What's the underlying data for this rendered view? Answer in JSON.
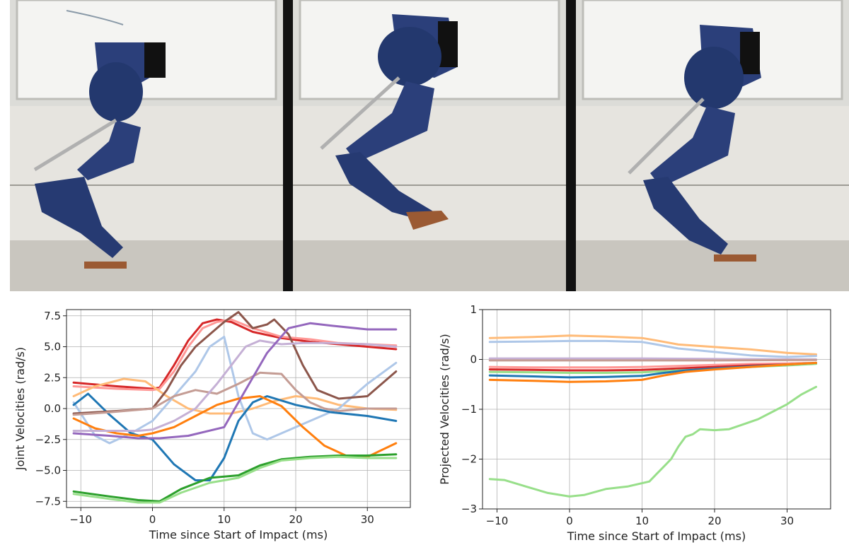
{
  "figure": {
    "photos": [
      {
        "name": "robot-standing",
        "description_icon": "bipedal-robot-icon"
      },
      {
        "name": "robot-airborne",
        "description_icon": "bipedal-robot-icon"
      },
      {
        "name": "robot-landing",
        "description_icon": "bipedal-robot-icon"
      }
    ]
  },
  "chart_data": [
    {
      "type": "line",
      "xlabel": "Time since Start of Impact (ms)",
      "ylabel": "Joint Velocities (rad/s)",
      "xlim": [
        -12,
        36
      ],
      "ylim": [
        -8,
        8
      ],
      "xticks": [
        -10,
        0,
        10,
        20,
        30
      ],
      "yticks": [
        -7.5,
        -5.0,
        -2.5,
        0.0,
        2.5,
        5.0,
        7.5
      ],
      "yticklabels": [
        "−7.5",
        "−5.0",
        "−2.5",
        "0.0",
        "2.5",
        "5.0",
        "7.5"
      ],
      "xticklabels": [
        "−10",
        "0",
        "10",
        "20",
        "30"
      ],
      "grid": true,
      "series": [
        {
          "color": "#d62728",
          "x": [
            -11,
            -5,
            0,
            1,
            3,
            5,
            7,
            9,
            11,
            14,
            18,
            22,
            26,
            30,
            34
          ],
          "y": [
            2.1,
            1.8,
            1.6,
            1.7,
            3.5,
            5.5,
            6.9,
            7.2,
            7.0,
            6.2,
            5.7,
            5.4,
            5.2,
            5.0,
            4.8
          ]
        },
        {
          "color": "#ff9896",
          "x": [
            -11,
            -5,
            0,
            1,
            3,
            5,
            7,
            9,
            11,
            14,
            18,
            22,
            26,
            30,
            34
          ],
          "y": [
            1.8,
            1.6,
            1.5,
            1.6,
            3.0,
            5.0,
            6.5,
            7.0,
            7.2,
            6.5,
            5.8,
            5.6,
            5.3,
            5.2,
            5.1
          ]
        },
        {
          "color": "#ffbb78",
          "x": [
            -11,
            -8,
            -4,
            -1,
            2,
            5,
            8,
            11,
            14,
            17,
            20,
            23,
            26,
            30,
            34
          ],
          "y": [
            1.0,
            1.8,
            2.4,
            2.2,
            1.0,
            0.0,
            -0.4,
            -0.4,
            0.0,
            0.6,
            1.0,
            0.8,
            0.3,
            0.0,
            -0.1
          ]
        },
        {
          "color": "#aec7e8",
          "x": [
            -11,
            -8,
            -6,
            -3,
            0,
            3,
            6,
            8,
            10,
            12,
            14,
            16,
            18,
            22,
            26,
            30,
            34
          ],
          "y": [
            0.5,
            -2.2,
            -2.8,
            -2.0,
            -1.0,
            1.0,
            3.0,
            5.0,
            5.8,
            1.0,
            -2.0,
            -2.5,
            -2.0,
            -1.0,
            0.0,
            2.0,
            3.7
          ]
        },
        {
          "color": "#1f77b4",
          "x": [
            -11,
            -9,
            -6,
            -3,
            0,
            3,
            6,
            8,
            10,
            12,
            14,
            16,
            20,
            25,
            30,
            34
          ],
          "y": [
            0.3,
            1.2,
            -0.5,
            -2.0,
            -2.5,
            -4.5,
            -5.8,
            -5.8,
            -4.0,
            -1.0,
            0.5,
            1.0,
            0.3,
            -0.3,
            -0.6,
            -1.0
          ]
        },
        {
          "color": "#ff7f0e",
          "x": [
            -11,
            -8,
            -5,
            -2,
            0,
            3,
            6,
            9,
            12,
            15,
            18,
            21,
            24,
            27,
            30,
            34
          ],
          "y": [
            -0.8,
            -1.6,
            -2.0,
            -2.2,
            -2.0,
            -1.5,
            -0.6,
            0.3,
            0.8,
            1.0,
            0.2,
            -1.5,
            -3.0,
            -3.8,
            -3.9,
            -2.8
          ]
        },
        {
          "color": "#8c564b",
          "x": [
            -11,
            -5,
            0,
            2,
            4,
            6,
            8,
            10,
            12,
            14,
            16,
            17,
            19,
            21,
            23,
            26,
            30,
            34
          ],
          "y": [
            -0.4,
            -0.2,
            0.0,
            1.5,
            3.5,
            5.0,
            6.0,
            7.0,
            7.8,
            6.5,
            6.8,
            7.2,
            6.0,
            3.5,
            1.5,
            0.8,
            1.0,
            3.0
          ]
        },
        {
          "color": "#c49c94",
          "x": [
            -11,
            -6,
            0,
            3,
            6,
            9,
            12,
            15,
            18,
            20,
            22,
            24,
            26,
            30,
            34
          ],
          "y": [
            -0.5,
            -0.3,
            0.0,
            1.0,
            1.5,
            1.2,
            2.0,
            2.9,
            2.8,
            1.5,
            0.5,
            0.0,
            -0.2,
            0.0,
            0.0
          ]
        },
        {
          "color": "#c5b0d5",
          "x": [
            -11,
            -6,
            -2,
            0,
            3,
            6,
            9,
            11,
            13,
            15,
            18,
            21,
            25,
            30,
            34
          ],
          "y": [
            -1.8,
            -1.8,
            -1.8,
            -1.7,
            -1.0,
            0.0,
            2.0,
            3.5,
            5.0,
            5.5,
            5.2,
            5.3,
            5.3,
            5.2,
            5.0
          ]
        },
        {
          "color": "#9467bd",
          "x": [
            -11,
            -6,
            -2,
            1,
            5,
            10,
            13,
            16,
            19,
            22,
            25,
            30,
            34
          ],
          "y": [
            -2.0,
            -2.2,
            -2.4,
            -2.4,
            -2.2,
            -1.5,
            1.5,
            4.5,
            6.5,
            6.9,
            6.7,
            6.4,
            6.4
          ]
        },
        {
          "color": "#2ca02c",
          "x": [
            -11,
            -6,
            -2,
            1,
            4,
            8,
            12,
            15,
            18,
            22,
            26,
            30,
            34
          ],
          "y": [
            -6.7,
            -7.1,
            -7.4,
            -7.5,
            -6.5,
            -5.6,
            -5.4,
            -4.6,
            -4.1,
            -3.9,
            -3.8,
            -3.8,
            -3.7
          ]
        },
        {
          "color": "#98df8a",
          "x": [
            -11,
            -6,
            -2,
            1,
            4,
            8,
            12,
            15,
            18,
            22,
            26,
            30,
            34
          ],
          "y": [
            -6.9,
            -7.3,
            -7.6,
            -7.6,
            -6.8,
            -6.0,
            -5.6,
            -4.8,
            -4.2,
            -4.0,
            -3.9,
            -4.0,
            -4.0
          ]
        }
      ]
    },
    {
      "type": "line",
      "xlabel": "Time since Start of Impact (ms)",
      "ylabel": "Projected Velocities (rad/s)",
      "xlim": [
        -12,
        36
      ],
      "ylim": [
        -3,
        1
      ],
      "xticks": [
        -10,
        0,
        10,
        20,
        30
      ],
      "yticks": [
        -3,
        -2,
        -1,
        0,
        1
      ],
      "yticklabels": [
        "−3",
        "−2",
        "−1",
        "0",
        "1"
      ],
      "xticklabels": [
        "−10",
        "0",
        "10",
        "20",
        "30"
      ],
      "grid": true,
      "series": [
        {
          "color": "#ffbb78",
          "x": [
            -11,
            -5,
            0,
            5,
            10,
            12,
            15,
            20,
            25,
            30,
            34
          ],
          "y": [
            0.43,
            0.45,
            0.48,
            0.46,
            0.43,
            0.38,
            0.3,
            0.25,
            0.2,
            0.13,
            0.1
          ]
        },
        {
          "color": "#aec7e8",
          "x": [
            -11,
            -5,
            0,
            5,
            10,
            12,
            15,
            20,
            25,
            30,
            34
          ],
          "y": [
            0.35,
            0.36,
            0.37,
            0.37,
            0.35,
            0.3,
            0.22,
            0.15,
            0.08,
            0.05,
            0.07
          ]
        },
        {
          "color": "#c5b0d5",
          "x": [
            -11,
            0,
            10,
            20,
            34
          ],
          "y": [
            0.02,
            0.02,
            0.02,
            0.01,
            0.0
          ]
        },
        {
          "color": "#c49c94",
          "x": [
            -11,
            0,
            10,
            20,
            34
          ],
          "y": [
            -0.02,
            -0.02,
            -0.02,
            -0.02,
            -0.01
          ]
        },
        {
          "color": "#ff9896",
          "x": [
            -11,
            -5,
            0,
            5,
            10,
            15,
            20,
            25,
            30,
            34
          ],
          "y": [
            -0.15,
            -0.16,
            -0.16,
            -0.16,
            -0.15,
            -0.13,
            -0.11,
            -0.09,
            -0.08,
            -0.07
          ]
        },
        {
          "color": "#d62728",
          "x": [
            -11,
            -5,
            0,
            5,
            10,
            15,
            20,
            25,
            30,
            34
          ],
          "y": [
            -0.2,
            -0.21,
            -0.22,
            -0.22,
            -0.21,
            -0.18,
            -0.15,
            -0.12,
            -0.1,
            -0.08
          ]
        },
        {
          "color": "#98df8a",
          "x": [
            -11,
            -5,
            0,
            5,
            10,
            15,
            20,
            25,
            30,
            34
          ],
          "y": [
            -0.25,
            -0.26,
            -0.27,
            -0.27,
            -0.26,
            -0.22,
            -0.19,
            -0.15,
            -0.12,
            -0.09
          ]
        },
        {
          "color": "#1f77b4",
          "x": [
            -11,
            -5,
            0,
            5,
            10,
            13,
            16,
            20,
            25,
            30,
            34
          ],
          "y": [
            -0.32,
            -0.34,
            -0.36,
            -0.35,
            -0.33,
            -0.27,
            -0.22,
            -0.18,
            -0.14,
            -0.1,
            -0.07
          ]
        },
        {
          "color": "#ff7f0e",
          "x": [
            -11,
            -5,
            0,
            5,
            10,
            13,
            16,
            20,
            25,
            30,
            34
          ],
          "y": [
            -0.41,
            -0.43,
            -0.45,
            -0.44,
            -0.41,
            -0.32,
            -0.25,
            -0.2,
            -0.15,
            -0.1,
            -0.07
          ]
        },
        {
          "color": "#98df8a",
          "x": [
            -11,
            -9,
            -6,
            -3,
            0,
            2,
            5,
            8,
            11,
            12,
            13,
            14,
            15,
            16,
            17,
            18,
            20,
            22,
            24,
            26,
            28,
            30,
            32,
            34
          ],
          "y": [
            -2.4,
            -2.42,
            -2.55,
            -2.68,
            -2.75,
            -2.72,
            -2.6,
            -2.55,
            -2.45,
            -2.3,
            -2.15,
            -2.0,
            -1.75,
            -1.55,
            -1.5,
            -1.4,
            -1.42,
            -1.4,
            -1.3,
            -1.2,
            -1.05,
            -0.9,
            -0.7,
            -0.55
          ]
        }
      ]
    }
  ]
}
